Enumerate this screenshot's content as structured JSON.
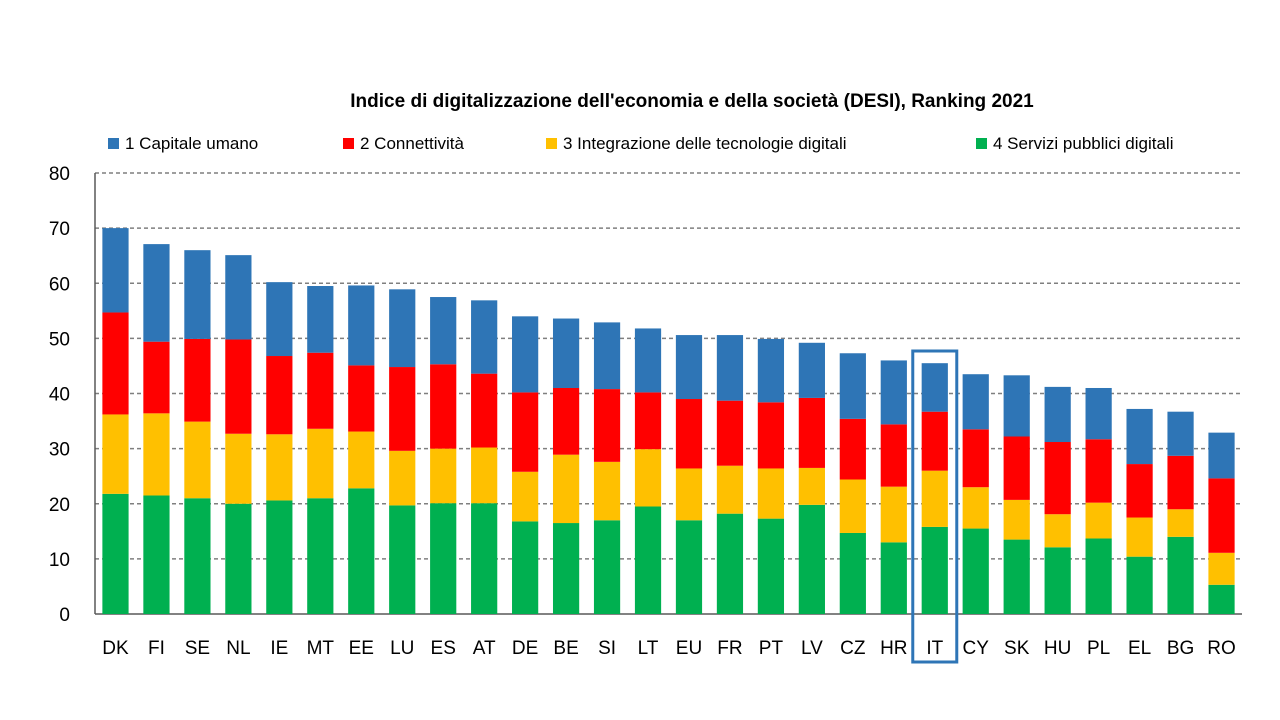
{
  "chart_data": {
    "type": "bar",
    "stacked": true,
    "title": "Indice di digitalizzazione dell'economia e della società (DESI), Ranking 2021",
    "xlabel": "",
    "ylabel": "",
    "ylim": [
      0,
      80
    ],
    "yticks": [
      0,
      10,
      20,
      30,
      40,
      50,
      60,
      70,
      80
    ],
    "grid": true,
    "legend_position": "top",
    "highlighted_category": "IT",
    "categories": [
      "DK",
      "FI",
      "SE",
      "NL",
      "IE",
      "MT",
      "EE",
      "LU",
      "ES",
      "AT",
      "DE",
      "BE",
      "SI",
      "LT",
      "EU",
      "FR",
      "PT",
      "LV",
      "CZ",
      "HR",
      "IT",
      "CY",
      "SK",
      "HU",
      "PL",
      "EL",
      "BG",
      "RO"
    ],
    "series": [
      {
        "name": "4 Servizi pubblici digitali",
        "color": "#00B050",
        "values": [
          21.8,
          21.5,
          21.0,
          20.0,
          20.6,
          21.0,
          22.8,
          19.7,
          20.1,
          20.1,
          16.8,
          16.5,
          17.0,
          19.5,
          17.0,
          18.2,
          17.3,
          19.8,
          14.7,
          13.0,
          15.8,
          15.5,
          13.5,
          12.1,
          13.7,
          10.4,
          14.0,
          5.3
        ]
      },
      {
        "name": "3 Integrazione delle tecnologie digitali",
        "color": "#FFC000",
        "values": [
          14.4,
          14.9,
          13.9,
          12.7,
          12.0,
          12.6,
          10.3,
          9.9,
          9.9,
          10.1,
          9.0,
          12.4,
          10.6,
          10.4,
          9.4,
          8.7,
          9.1,
          6.7,
          9.7,
          10.1,
          10.2,
          7.5,
          7.2,
          6.0,
          6.5,
          7.1,
          5.0,
          5.8
        ]
      },
      {
        "name": "2 Connettività",
        "color": "#FF0000",
        "values": [
          18.5,
          13.0,
          15.0,
          17.1,
          14.2,
          13.8,
          12.0,
          15.2,
          15.3,
          13.4,
          14.4,
          12.1,
          13.2,
          10.3,
          12.6,
          11.8,
          12.0,
          12.7,
          11.0,
          11.3,
          10.7,
          10.5,
          11.5,
          13.1,
          11.5,
          9.7,
          9.7,
          13.5
        ]
      },
      {
        "name": "1 Capitale umano",
        "color": "#2E75B6",
        "values": [
          15.3,
          17.7,
          16.1,
          15.3,
          13.4,
          12.1,
          14.5,
          14.1,
          12.2,
          13.3,
          13.8,
          12.6,
          12.1,
          11.6,
          11.6,
          11.9,
          11.5,
          10.0,
          11.9,
          11.6,
          8.8,
          10.0,
          11.1,
          10.0,
          9.3,
          10.0,
          8.0,
          8.3
        ]
      }
    ],
    "legend_order": [
      "1 Capitale umano",
      "2 Connettività",
      "3 Integrazione delle tecnologie digitali",
      "4 Servizi pubblici digitali"
    ]
  },
  "colors": {
    "highlight_box": "#2E75B6",
    "grid": "#7f7f7f",
    "axis": "#595959"
  }
}
